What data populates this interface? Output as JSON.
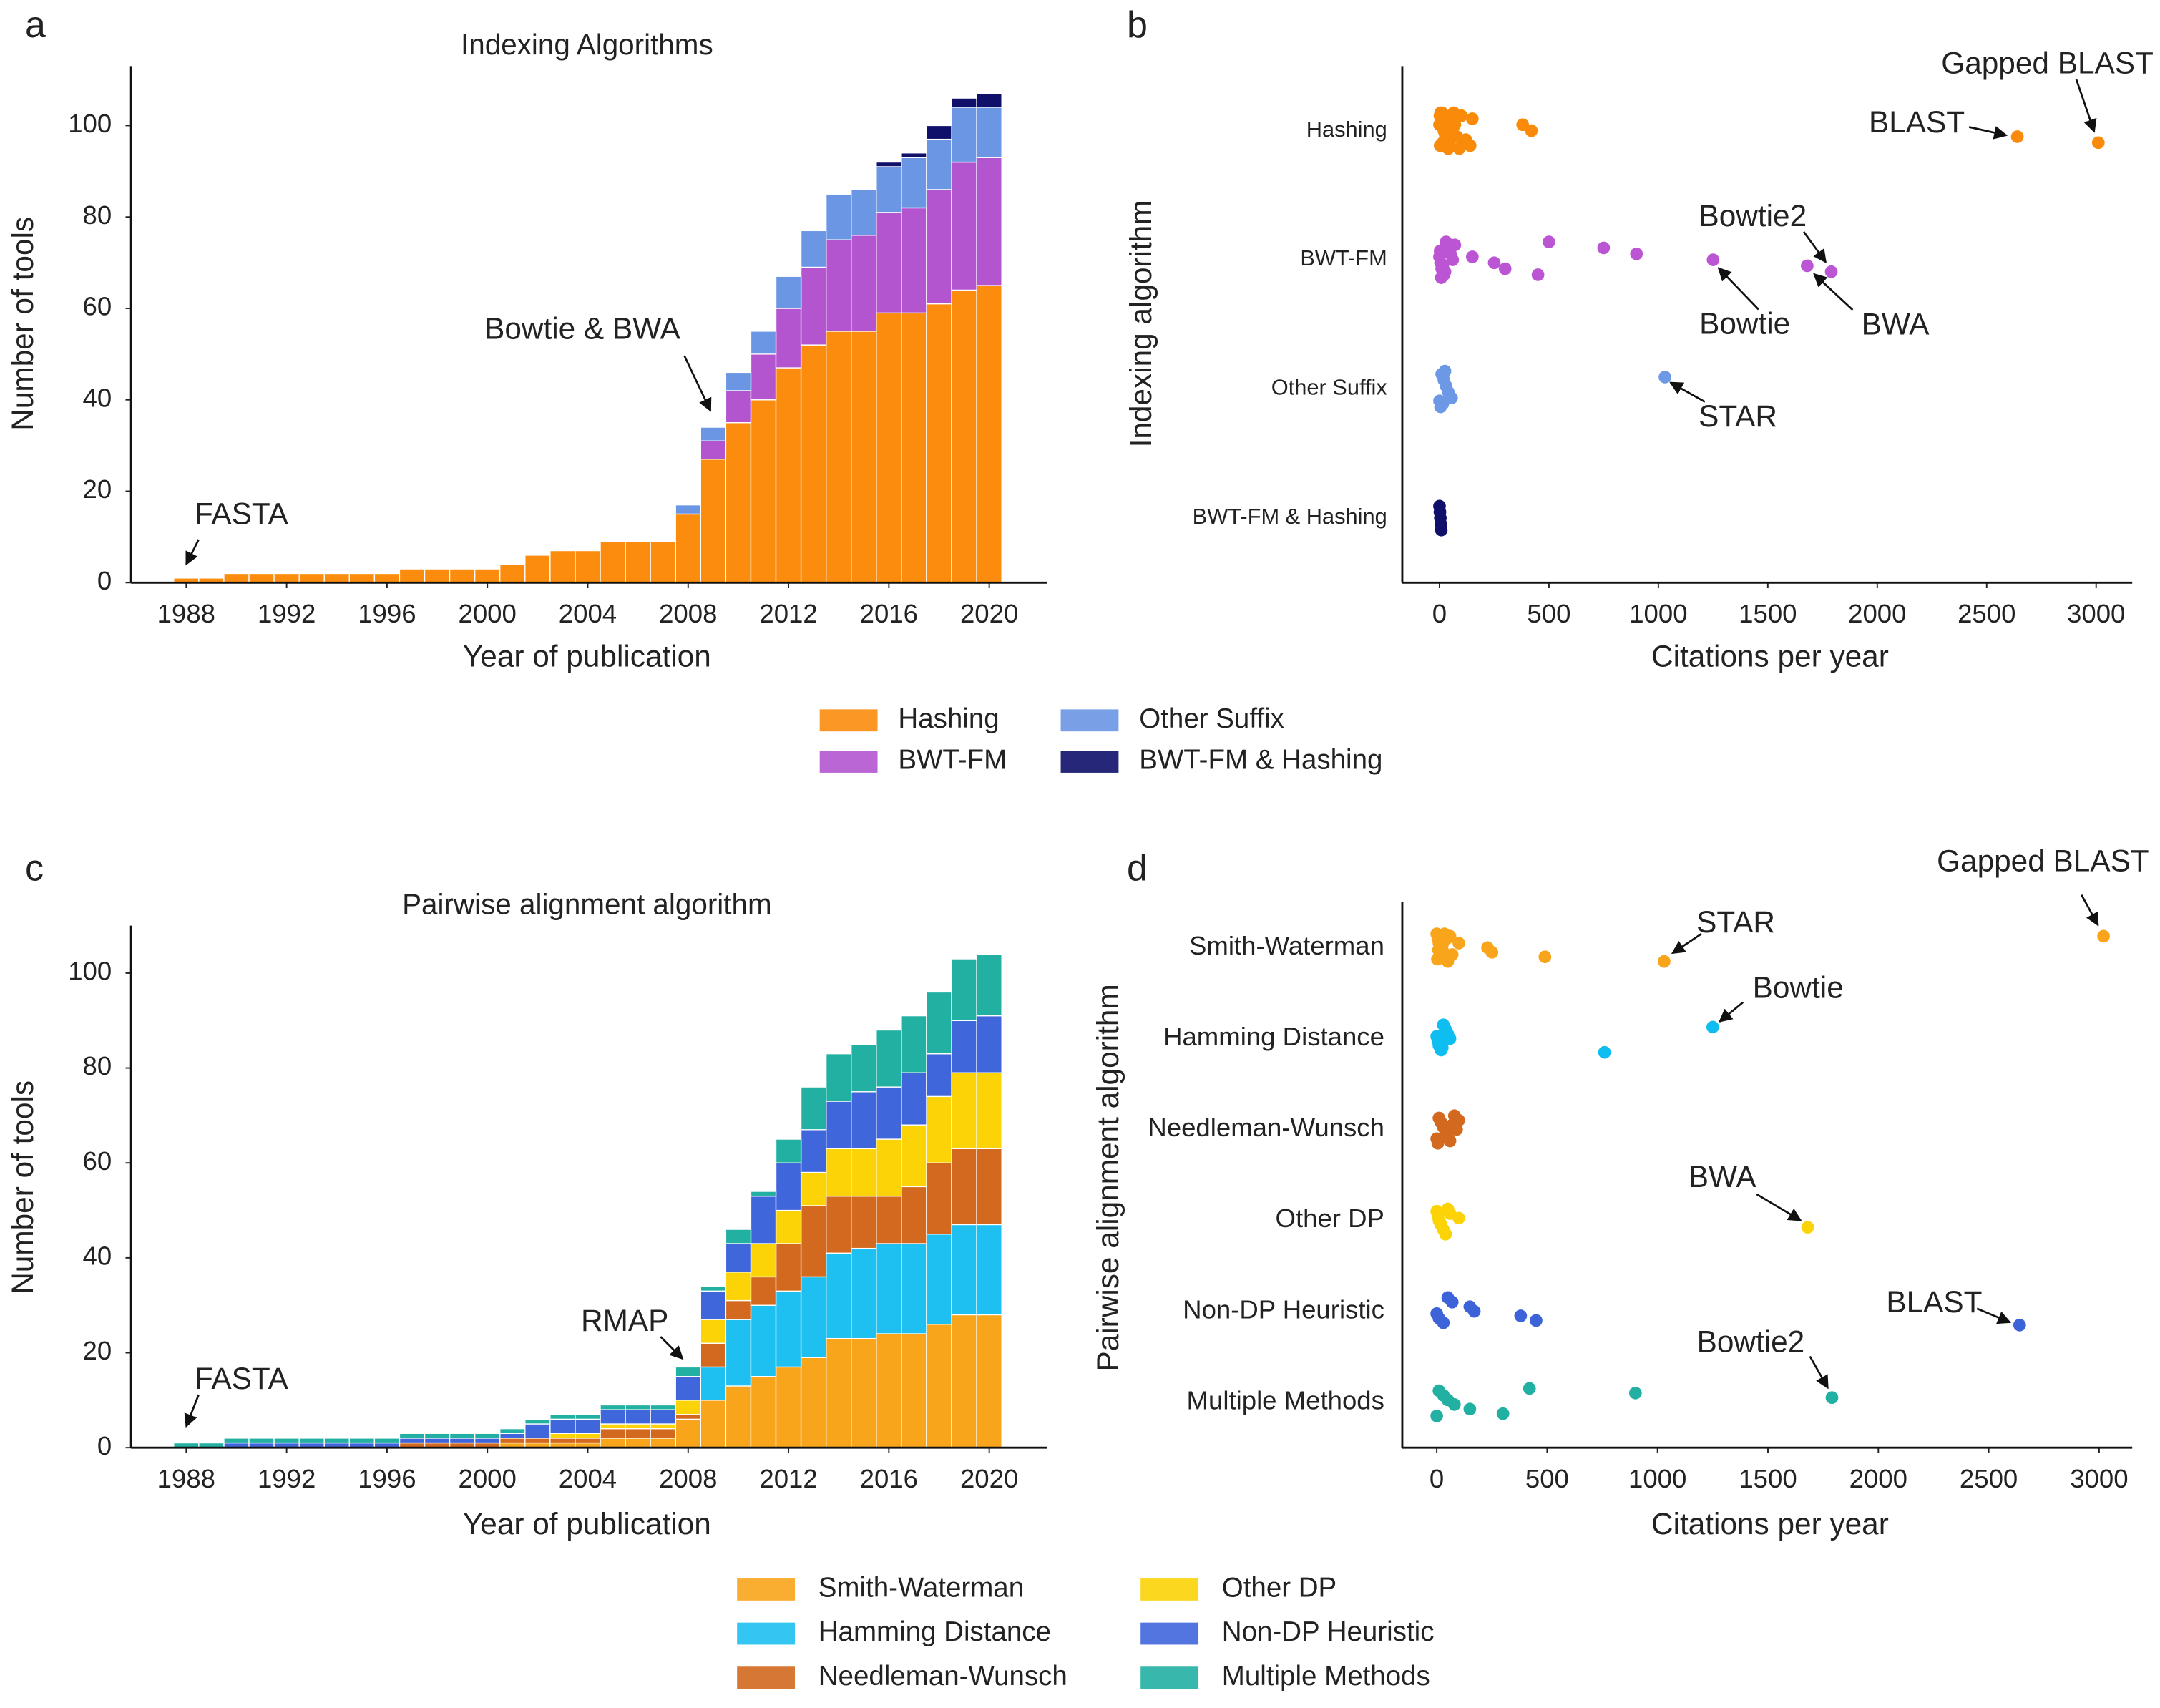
{
  "chart_data": [
    {
      "type": "bar",
      "panel": "a",
      "title": "Indexing Algorithms",
      "x_label": "Year of publication",
      "y_label": "Number of tools",
      "x": [
        1988,
        1989,
        1990,
        1991,
        1992,
        1993,
        1994,
        1995,
        1996,
        1997,
        1998,
        1999,
        2000,
        2001,
        2002,
        2003,
        2004,
        2005,
        2006,
        2007,
        2008,
        2009,
        2010,
        2011,
        2012,
        2013,
        2014,
        2015,
        2016,
        2017,
        2018,
        2019,
        2020
      ],
      "xlim": [
        1985.8,
        2022.3
      ],
      "xticks": [
        1988,
        1992,
        1996,
        2000,
        2004,
        2008,
        2012,
        2016,
        2020
      ],
      "ylim": [
        0,
        113
      ],
      "yticks": [
        0,
        20,
        40,
        60,
        80,
        100
      ],
      "stacked": true,
      "series": [
        {
          "name": "Hashing",
          "color": "#fb8c0d",
          "values": [
            1,
            1,
            2,
            2,
            2,
            2,
            2,
            2,
            2,
            3,
            3,
            3,
            3,
            4,
            6,
            7,
            7,
            9,
            9,
            9,
            15,
            27,
            35,
            40,
            47,
            52,
            55,
            55,
            59,
            59,
            61,
            64,
            65
          ]
        },
        {
          "name": "BWT-FM",
          "color": "#b455d0",
          "values": [
            0,
            0,
            0,
            0,
            0,
            0,
            0,
            0,
            0,
            0,
            0,
            0,
            0,
            0,
            0,
            0,
            0,
            0,
            0,
            0,
            0,
            4,
            7,
            10,
            13,
            17,
            20,
            21,
            22,
            23,
            25,
            28,
            28
          ]
        },
        {
          "name": "Other Suffix",
          "color": "#6a96e4",
          "values": [
            0,
            0,
            0,
            0,
            0,
            0,
            0,
            0,
            0,
            0,
            0,
            0,
            0,
            0,
            0,
            0,
            0,
            0,
            0,
            0,
            2,
            3,
            4,
            5,
            7,
            8,
            10,
            10,
            10,
            11,
            11,
            12,
            11
          ]
        },
        {
          "name": "BWT-FM & Hashing",
          "color": "#10106a",
          "values": [
            0,
            0,
            0,
            0,
            0,
            0,
            0,
            0,
            0,
            0,
            0,
            0,
            0,
            0,
            0,
            0,
            0,
            0,
            0,
            0,
            0,
            0,
            0,
            0,
            0,
            0,
            0,
            0,
            1,
            1,
            3,
            2,
            3
          ]
        }
      ],
      "annotations": [
        {
          "text": "FASTA",
          "x": 1988,
          "y": 1
        },
        {
          "text": "Bowtie & BWA",
          "x": 2009,
          "y": 34
        }
      ]
    },
    {
      "type": "scatter",
      "panel": "b",
      "x_label": "Citations per year",
      "y_label": "Indexing algorithm",
      "xlim": [
        -170,
        3165
      ],
      "xticks": [
        0,
        500,
        1000,
        1500,
        2000,
        2500,
        3000
      ],
      "series": [
        {
          "name": "Hashing",
          "color": "#f98a0a",
          "values": [
            5,
            10,
            0,
            20,
            30,
            15,
            40,
            2,
            8,
            60,
            25,
            50,
            3,
            12,
            35,
            70,
            45,
            80,
            18,
            90,
            100,
            6,
            28,
            55,
            120,
            140,
            65,
            150,
            380,
            420,
            2640,
            3010
          ]
        },
        {
          "name": "BWT-FM",
          "color": "#bb55d3",
          "values": [
            0,
            5,
            10,
            20,
            30,
            40,
            50,
            60,
            15,
            25,
            8,
            70,
            3,
            150,
            250,
            300,
            450,
            500,
            750,
            900,
            1250,
            1680,
            1790
          ]
        },
        {
          "name": "Other Suffix",
          "color": "#6d98e6",
          "values": [
            0,
            5,
            10,
            20,
            30,
            40,
            55,
            15,
            25,
            1030
          ]
        },
        {
          "name": "BWT-FM & Hashing",
          "color": "#10106a",
          "values": [
            0,
            2,
            4,
            6,
            8
          ]
        }
      ],
      "annotations": [
        {
          "text": "BLAST",
          "x": 2640
        },
        {
          "text": "Gapped BLAST",
          "x": 3010
        },
        {
          "text": "Bowtie2",
          "x": 1790
        },
        {
          "text": "Bowtie",
          "x": 1250
        },
        {
          "text": "BWA",
          "x": 1680
        },
        {
          "text": "STAR",
          "x": 1030
        }
      ]
    },
    {
      "type": "bar",
      "panel": "c",
      "title": "Pairwise alignment algorithm",
      "x_label": "Year of publication",
      "y_label": "Number of tools",
      "x": [
        1988,
        1989,
        1990,
        1991,
        1992,
        1993,
        1994,
        1995,
        1996,
        1997,
        1998,
        1999,
        2000,
        2001,
        2002,
        2003,
        2004,
        2005,
        2006,
        2007,
        2008,
        2009,
        2010,
        2011,
        2012,
        2013,
        2014,
        2015,
        2016,
        2017,
        2018,
        2019,
        2020
      ],
      "xlim": [
        1985.8,
        2022.3
      ],
      "xticks": [
        1988,
        1992,
        1996,
        2000,
        2004,
        2008,
        2012,
        2016,
        2020
      ],
      "ylim": [
        0,
        110
      ],
      "yticks": [
        0,
        20,
        40,
        60,
        80,
        100
      ],
      "stacked": true,
      "series": [
        {
          "name": "Smith-Waterman",
          "color": "#f8a51c",
          "values": [
            0,
            0,
            0,
            0,
            0,
            0,
            0,
            0,
            0,
            0,
            0,
            0,
            0,
            1,
            1,
            1,
            1,
            2,
            2,
            2,
            6,
            10,
            13,
            15,
            17,
            19,
            23,
            23,
            24,
            24,
            26,
            28,
            28
          ]
        },
        {
          "name": "Hamming Distance",
          "color": "#1ec0f2",
          "values": [
            0,
            0,
            0,
            0,
            0,
            0,
            0,
            0,
            0,
            0,
            0,
            0,
            0,
            0,
            0,
            0,
            0,
            0,
            0,
            0,
            0,
            7,
            14,
            15,
            16,
            17,
            18,
            19,
            19,
            19,
            19,
            19,
            19
          ]
        },
        {
          "name": "Needleman-Wunsch",
          "color": "#d2691e",
          "values": [
            0,
            0,
            0,
            0,
            0,
            0,
            0,
            0,
            0,
            1,
            1,
            1,
            1,
            1,
            1,
            1,
            1,
            2,
            2,
            2,
            1,
            5,
            4,
            6,
            10,
            15,
            12,
            11,
            10,
            12,
            15,
            16,
            16
          ]
        },
        {
          "name": "Other DP",
          "color": "#fbd307",
          "values": [
            0,
            0,
            0,
            0,
            0,
            0,
            0,
            0,
            0,
            0,
            0,
            0,
            0,
            0,
            0,
            1,
            1,
            1,
            1,
            1,
            3,
            5,
            6,
            7,
            7,
            7,
            10,
            10,
            12,
            13,
            14,
            16,
            16
          ]
        },
        {
          "name": "Non-DP Heuristic",
          "color": "#4066db",
          "values": [
            0,
            0,
            1,
            1,
            1,
            1,
            1,
            1,
            1,
            1,
            1,
            1,
            1,
            1,
            3,
            3,
            3,
            3,
            3,
            3,
            5,
            6,
            6,
            10,
            10,
            9,
            10,
            12,
            11,
            11,
            9,
            11,
            12
          ]
        },
        {
          "name": "Multiple Methods",
          "color": "#22b0a3",
          "values": [
            1,
            1,
            1,
            1,
            1,
            1,
            1,
            1,
            1,
            1,
            1,
            1,
            1,
            1,
            1,
            1,
            1,
            1,
            1,
            1,
            2,
            1,
            3,
            1,
            5,
            9,
            10,
            10,
            12,
            12,
            13,
            13,
            13
          ]
        }
      ],
      "annotations": [
        {
          "text": "FASTA",
          "x": 1988,
          "y": 1
        },
        {
          "text": "RMAP",
          "x": 2008,
          "y": 17
        }
      ]
    },
    {
      "type": "scatter",
      "panel": "d",
      "x_label": "Citations per year",
      "y_label": "Pairwise alignment algorithm",
      "xlim": [
        -156,
        3150
      ],
      "xticks": [
        0,
        500,
        1000,
        1500,
        2000,
        2500,
        3000
      ],
      "series": [
        {
          "name": "Smith-Waterman",
          "color": "#f8a51c",
          "values": [
            0,
            5,
            10,
            20,
            30,
            40,
            50,
            60,
            15,
            25,
            8,
            70,
            3,
            35,
            45,
            100,
            230,
            250,
            490,
            1030,
            3020
          ]
        },
        {
          "name": "Hamming Distance",
          "color": "#0fbef0",
          "values": [
            0,
            5,
            10,
            20,
            30,
            40,
            50,
            60,
            15,
            25,
            760,
            1250
          ]
        },
        {
          "name": "Needleman-Wunsch",
          "color": "#d2691e",
          "values": [
            0,
            5,
            10,
            20,
            30,
            40,
            50,
            60,
            80,
            100,
            70,
            90
          ]
        },
        {
          "name": "Other DP",
          "color": "#fbd307",
          "values": [
            0,
            5,
            10,
            20,
            30,
            40,
            50,
            60,
            100,
            15,
            1680
          ]
        },
        {
          "name": "Non-DP Heuristic",
          "color": "#3c63d8",
          "values": [
            0,
            10,
            30,
            50,
            70,
            150,
            170,
            380,
            450,
            2640
          ]
        },
        {
          "name": "Multiple Methods",
          "color": "#22b0a3",
          "values": [
            0,
            10,
            30,
            50,
            80,
            150,
            300,
            420,
            900,
            1790
          ]
        }
      ],
      "annotations": [
        {
          "text": "STAR",
          "x": 1030
        },
        {
          "text": "Gapped BLAST",
          "x": 3020
        },
        {
          "text": "Bowtie",
          "x": 1250
        },
        {
          "text": "BWA",
          "x": 1680
        },
        {
          "text": "BLAST",
          "x": 2640
        },
        {
          "text": "Bowtie2",
          "x": 1790
        }
      ]
    }
  ]
}
